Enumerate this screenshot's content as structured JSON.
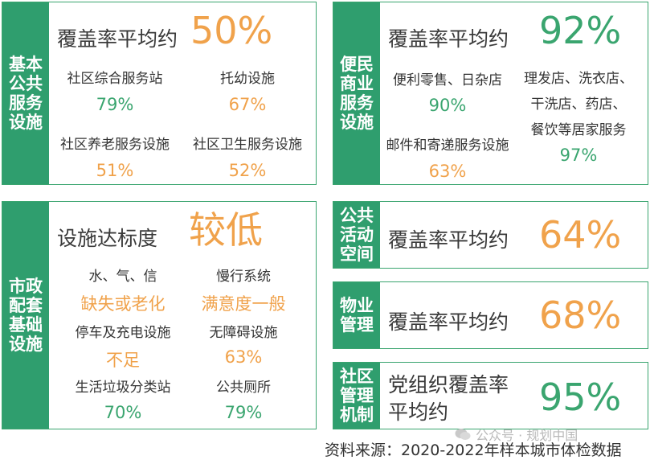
{
  "colors": {
    "green": "#2f9e6e",
    "orange": "#f0a24b",
    "value_green": "#3aa56f"
  },
  "panel_basic": {
    "tag_lines": [
      "基本",
      "公共",
      "服务",
      "设施"
    ],
    "heading": "覆盖率平均约",
    "big_value": "50%",
    "items": [
      {
        "label": "社区综合服务站",
        "value": "79%"
      },
      {
        "label": "托幼设施",
        "value": "67%"
      },
      {
        "label": "社区养老服务设施",
        "value": "51%"
      },
      {
        "label": "社区卫生服务设施",
        "value": "52%"
      }
    ]
  },
  "panel_commerce": {
    "tag_lines": [
      "便民",
      "商业",
      "服务",
      "设施"
    ],
    "heading": "覆盖率平均约",
    "big_value": "92%",
    "items": [
      {
        "label": "便利零售、日杂店",
        "value": "90%"
      },
      {
        "label": "邮件和寄递服务设施",
        "value": "63%"
      },
      {
        "label_lines": [
          "理发店、洗衣店、",
          "干洗店、药店、",
          "餐饮等居家服务"
        ],
        "value": "97%"
      }
    ]
  },
  "panel_municipal": {
    "tag_lines": [
      "市政",
      "配套",
      "基础",
      "设施"
    ],
    "heading": "设施达标度",
    "big_value": "较低",
    "items": [
      {
        "label": "水、气、信",
        "value": "缺失或老化"
      },
      {
        "label": "慢行系统",
        "value": "满意度一般"
      },
      {
        "label": "停车及充电设施",
        "value": "不足"
      },
      {
        "label": "无障碍设施",
        "value": "63%"
      },
      {
        "label": "生活垃圾分类站",
        "value": "70%"
      },
      {
        "label": "公共厕所",
        "value": "79%"
      }
    ]
  },
  "panel_activity": {
    "tag_lines": [
      "公共",
      "活动",
      "空间"
    ],
    "heading": "覆盖率平均约",
    "big_value": "64%"
  },
  "panel_property": {
    "tag_lines": [
      "物业",
      "管理"
    ],
    "heading": "覆盖率平均约",
    "big_value": "68%"
  },
  "panel_governance": {
    "tag_lines": [
      "社区",
      "管理",
      "机制"
    ],
    "heading_lines": [
      "党组织覆盖率",
      "平均约"
    ],
    "big_value": "95%"
  },
  "watermark": "公众号 · 规划中国",
  "source": "资料来源：2020-2022年样本城市体检数据"
}
